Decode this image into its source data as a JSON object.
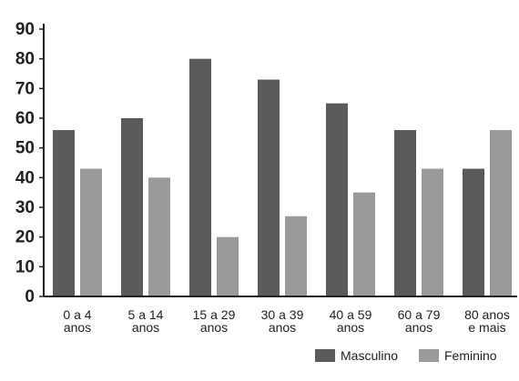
{
  "chart_data": {
    "type": "bar",
    "categories": [
      [
        "0 a 4",
        "anos"
      ],
      [
        "5 a 14",
        "anos"
      ],
      [
        "15 a 29",
        "anos"
      ],
      [
        "30 a 39",
        "anos"
      ],
      [
        "40 a 59",
        "anos"
      ],
      [
        "60 a 79",
        "anos"
      ],
      [
        "80 anos",
        "e mais"
      ]
    ],
    "series": [
      {
        "name": "Masculino",
        "color": "#5a5a5a",
        "values": [
          56,
          60,
          80,
          73,
          65,
          56,
          43
        ]
      },
      {
        "name": "Feminino",
        "color": "#9a9a9a",
        "values": [
          43,
          40,
          20,
          27,
          35,
          43,
          56
        ]
      }
    ],
    "ylim": [
      0,
      90
    ],
    "yticks": [
      0,
      10,
      20,
      30,
      40,
      50,
      60,
      70,
      80,
      90
    ],
    "legend_position": "bottom-right",
    "grid": false
  }
}
